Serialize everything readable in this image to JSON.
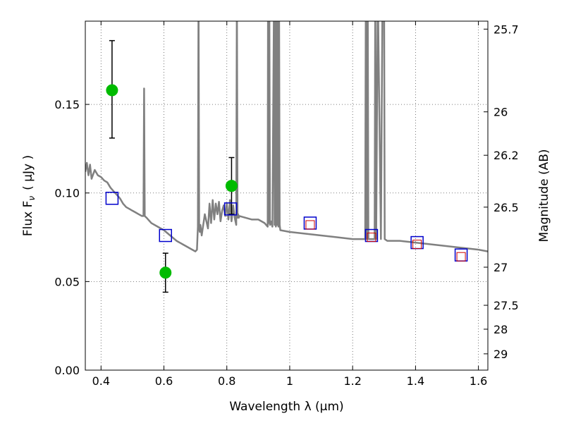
{
  "chart_data": {
    "type": "scatter",
    "xlabel": "Wavelength  λ (μm)",
    "ylabel": "Flux  F",
    "ylabel_sub": "ν",
    "ylabel_unit": "( μJy )",
    "y2label": "Magnitude (AB)",
    "xlim": [
      0.35,
      1.63
    ],
    "ylim": [
      0.0,
      0.197
    ],
    "grid": true,
    "x_ticks": [
      0.4,
      0.6,
      0.8,
      1.0,
      1.2,
      1.4,
      1.6
    ],
    "x_tick_labels": [
      "0.4",
      "0.6",
      "0.8",
      "1",
      "1.2",
      "1.4",
      "1.6"
    ],
    "y_ticks": [
      0.0,
      0.05,
      0.1,
      0.15
    ],
    "y_tick_labels": [
      "0.00",
      "0.05",
      "0.10",
      "0.15"
    ],
    "y2_ticks": [
      {
        "label": "25.7",
        "flux": 0.1925
      },
      {
        "label": "26",
        "flux": 0.1458
      },
      {
        "label": "26.2",
        "flux": 0.1213
      },
      {
        "label": "26.5",
        "flux": 0.092
      },
      {
        "label": "27",
        "flux": 0.0581
      },
      {
        "label": "27.5",
        "flux": 0.0366
      },
      {
        "label": "28",
        "flux": 0.0231
      },
      {
        "label": "29",
        "flux": 0.0092
      }
    ],
    "series": [
      {
        "kind": "line",
        "color": "#808080",
        "x": [
          0.35,
          0.355,
          0.36,
          0.365,
          0.37,
          0.38,
          0.39,
          0.4,
          0.41,
          0.42,
          0.43,
          0.44,
          0.45,
          0.46,
          0.47,
          0.48,
          0.49,
          0.5,
          0.51,
          0.52,
          0.53,
          0.535,
          0.537,
          0.539,
          0.545,
          0.55,
          0.56,
          0.58,
          0.6,
          0.62,
          0.64,
          0.66,
          0.68,
          0.7,
          0.705,
          0.708,
          0.71,
          0.712,
          0.714,
          0.716,
          0.72,
          0.73,
          0.74,
          0.745,
          0.75,
          0.755,
          0.76,
          0.765,
          0.77,
          0.775,
          0.78,
          0.785,
          0.79,
          0.795,
          0.8,
          0.805,
          0.81,
          0.815,
          0.82,
          0.825,
          0.83,
          0.832,
          0.834,
          0.836,
          0.838,
          0.84,
          0.86,
          0.88,
          0.9,
          0.92,
          0.93,
          0.931,
          0.933,
          0.935,
          0.937,
          0.94,
          0.945,
          0.95,
          0.952,
          0.954,
          0.956,
          0.958,
          0.96,
          0.962,
          0.964,
          0.966,
          0.968,
          0.97,
          1.0,
          1.05,
          1.1,
          1.15,
          1.2,
          1.24,
          1.242,
          1.245,
          1.248,
          1.25,
          1.26,
          1.27,
          1.272,
          1.275,
          1.28,
          1.29,
          1.295,
          1.3,
          1.302,
          1.31,
          1.35,
          1.4,
          1.45,
          1.5,
          1.55,
          1.6,
          1.63
        ],
        "y": [
          0.112,
          0.117,
          0.11,
          0.116,
          0.108,
          0.113,
          0.11,
          0.109,
          0.107,
          0.106,
          0.103,
          0.101,
          0.099,
          0.097,
          0.094,
          0.092,
          0.091,
          0.09,
          0.089,
          0.088,
          0.087,
          0.087,
          0.159,
          0.087,
          0.086,
          0.085,
          0.083,
          0.081,
          0.079,
          0.076,
          0.073,
          0.071,
          0.069,
          0.067,
          0.068,
          0.081,
          0.215,
          0.08,
          0.078,
          0.082,
          0.076,
          0.088,
          0.08,
          0.094,
          0.083,
          0.096,
          0.085,
          0.094,
          0.088,
          0.095,
          0.084,
          0.09,
          0.093,
          0.087,
          0.094,
          0.085,
          0.096,
          0.084,
          0.093,
          0.086,
          0.082,
          0.215,
          0.086,
          0.088,
          0.086,
          0.087,
          0.086,
          0.085,
          0.085,
          0.083,
          0.081,
          0.215,
          0.083,
          0.215,
          0.082,
          0.084,
          0.081,
          0.215,
          0.082,
          0.215,
          0.081,
          0.215,
          0.082,
          0.215,
          0.081,
          0.215,
          0.082,
          0.079,
          0.078,
          0.077,
          0.076,
          0.075,
          0.074,
          0.074,
          0.215,
          0.074,
          0.215,
          0.074,
          0.074,
          0.074,
          0.215,
          0.074,
          0.215,
          0.074,
          0.215,
          0.215,
          0.074,
          0.073,
          0.073,
          0.072,
          0.071,
          0.07,
          0.069,
          0.068,
          0.067
        ]
      },
      {
        "kind": "points",
        "marker": "circle",
        "color": "#00bb00",
        "points": [
          {
            "x": 0.435,
            "y": 0.158,
            "yerr_low": 0.131,
            "yerr_high": 0.186
          },
          {
            "x": 0.605,
            "y": 0.055,
            "yerr_low": 0.044,
            "yerr_high": 0.066
          },
          {
            "x": 0.815,
            "y": 0.104,
            "yerr_low": 0.088,
            "yerr_high": 0.12
          }
        ]
      },
      {
        "kind": "points",
        "marker": "square",
        "color": "#0000cc",
        "points": [
          {
            "x": 0.435,
            "y": 0.097
          },
          {
            "x": 0.605,
            "y": 0.076
          },
          {
            "x": 0.812,
            "y": 0.091
          },
          {
            "x": 1.065,
            "y": 0.083
          },
          {
            "x": 1.26,
            "y": 0.076
          },
          {
            "x": 1.405,
            "y": 0.072
          },
          {
            "x": 1.545,
            "y": 0.065
          }
        ]
      },
      {
        "kind": "points",
        "marker": "square-small",
        "color": "#cc0000",
        "points": [
          {
            "x": 1.065,
            "y": 0.082
          },
          {
            "x": 1.26,
            "y": 0.075
          },
          {
            "x": 1.405,
            "y": 0.071
          },
          {
            "x": 1.545,
            "y": 0.064
          }
        ]
      }
    ]
  }
}
